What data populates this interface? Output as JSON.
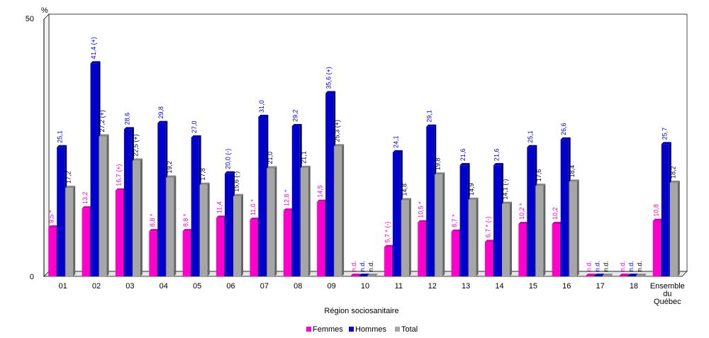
{
  "chart_data": {
    "type": "bar",
    "ylabel": "%",
    "xlabel": "Région sociosanitaire",
    "ylim": [
      0,
      50
    ],
    "yticks": [
      "0",
      "50"
    ],
    "categories": [
      "01",
      "02",
      "03",
      "04",
      "05",
      "06",
      "07",
      "08",
      "09",
      "10",
      "11",
      "12",
      "13",
      "14",
      "15",
      "16",
      "17",
      "18",
      "Ensemble du Québec"
    ],
    "series": [
      {
        "name": "Femmes",
        "color": "#ff00cc",
        "values": [
          9.5,
          13.2,
          16.7,
          8.8,
          8.8,
          11.4,
          11.0,
          12.8,
          14.5,
          null,
          5.7,
          10.5,
          8.7,
          6.7,
          10.2,
          10.2,
          null,
          null,
          10.8
        ],
        "labels": [
          "9,5 *",
          "13,2",
          "16,7 (+)",
          "8,8 *",
          "8,8 *",
          "11,4",
          "11,0 *",
          "12,8 *",
          "14,5",
          "n.d.",
          "5,7 * (-)",
          "10,5 *",
          "8,7 *",
          "6,7 * (-)",
          "10,2 *",
          "10,2",
          "n.d.",
          "n.d.",
          "10,8"
        ]
      },
      {
        "name": "Hommes",
        "color": "#0000cc",
        "values": [
          25.1,
          41.4,
          28.6,
          29.8,
          27.0,
          20.0,
          31.0,
          29.2,
          35.6,
          null,
          24.1,
          29.1,
          21.6,
          21.6,
          25.1,
          26.6,
          null,
          null,
          25.7
        ],
        "labels": [
          "25,1",
          "41,4 (+)",
          "28,6",
          "29,8",
          "27,0",
          "20,0 (-)",
          "31,0",
          "29,2",
          "35,6 (+)",
          "n.d.",
          "24,1",
          "29,1",
          "21,6",
          "21,6",
          "25,1",
          "26,6",
          "n.d.",
          "n.d.",
          "25,7"
        ]
      },
      {
        "name": "Total",
        "color": "#a6a6a6",
        "values": [
          17.2,
          27.2,
          22.5,
          19.2,
          17.8,
          15.6,
          21.0,
          21.1,
          25.3,
          null,
          14.8,
          19.8,
          14.9,
          14.1,
          17.6,
          18.4,
          null,
          null,
          18.2
        ],
        "labels": [
          "17,2",
          "27,2 (+)",
          "22,5 (+)",
          "19,2",
          "17,8",
          "15,6 (-)",
          "21,0",
          "21,1",
          "25,3 (+)",
          "n.d.",
          "14,8",
          "19,8",
          "14,9",
          "14,1 (-)",
          "17,6",
          "18,4",
          "n.d.",
          "n.d.",
          "18,2"
        ]
      }
    ],
    "legend_position": "bottom-center",
    "grid": false
  }
}
